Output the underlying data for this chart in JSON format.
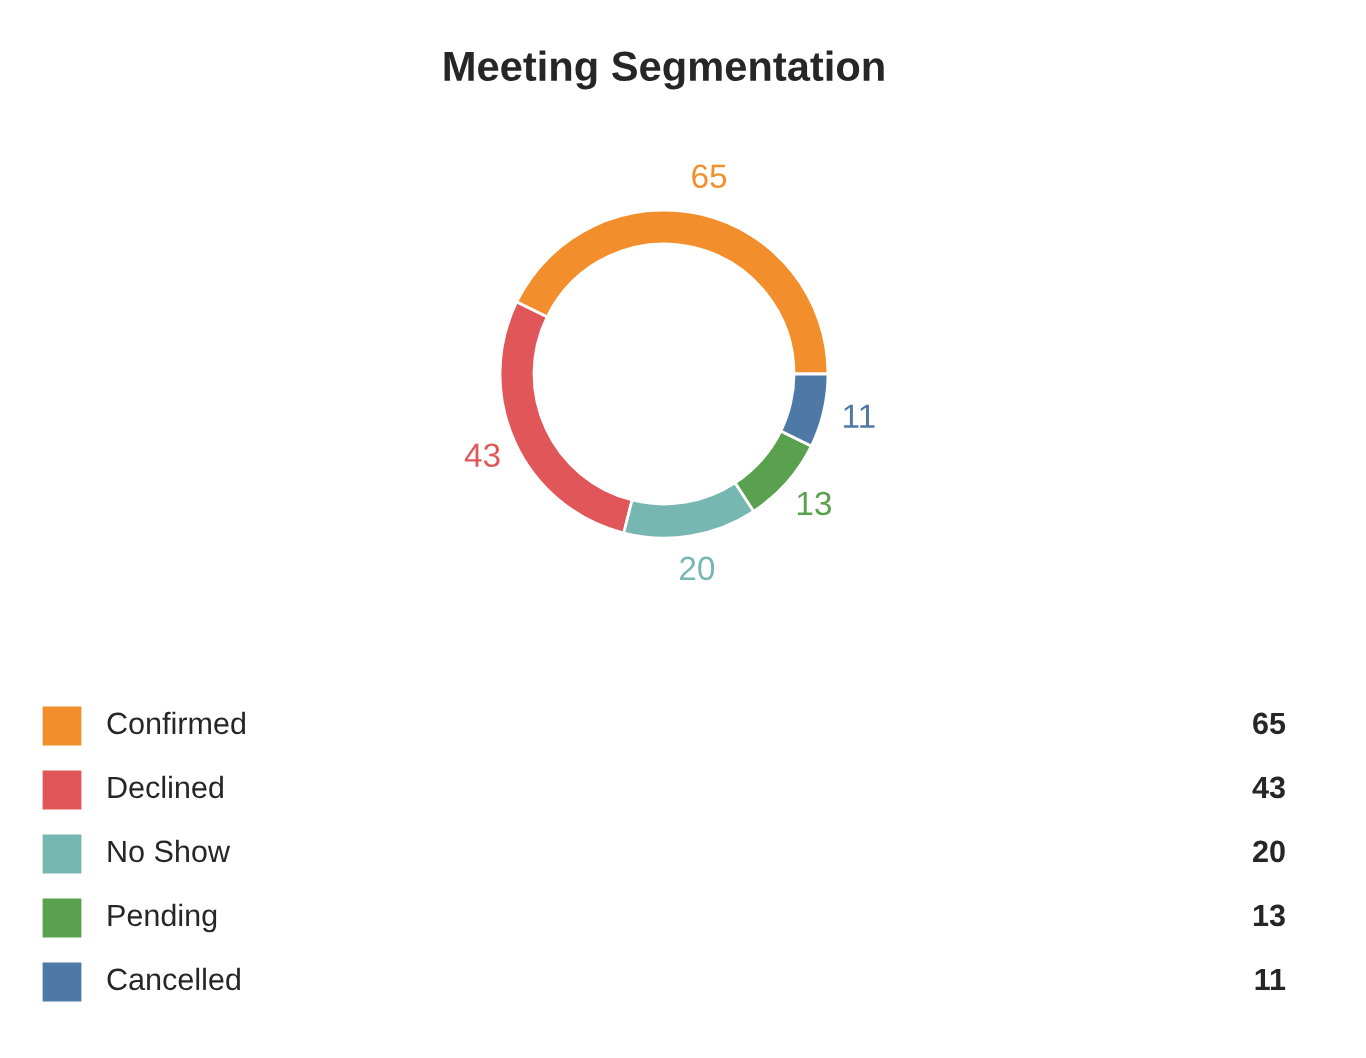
{
  "chart_data": {
    "type": "donut",
    "title": "Meeting Segmentation",
    "categories": [
      "Confirmed",
      "Declined",
      "No Show",
      "Pending",
      "Cancelled"
    ],
    "values": [
      65,
      43,
      20,
      13,
      11
    ],
    "colors": [
      "#f28e2b",
      "#e15759",
      "#76b7b2",
      "#59a14f",
      "#4e79a7"
    ],
    "value_labels": [
      "65",
      "43",
      "20",
      "13",
      "11"
    ],
    "annotations": [
      {
        "text": "65",
        "x": "Confirmed"
      },
      {
        "text": "43",
        "x": "Declined"
      },
      {
        "text": "20",
        "x": "No Show"
      },
      {
        "text": "13",
        "x": "Pending"
      },
      {
        "text": "11",
        "x": "Cancelled"
      }
    ],
    "legend": "bottom"
  }
}
